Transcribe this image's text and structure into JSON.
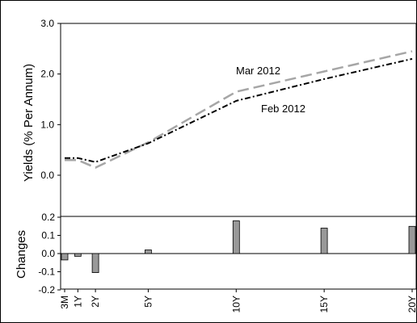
{
  "chart_data": [
    {
      "type": "line",
      "xlabel": "",
      "ylabel": "Yields (% Per Annum)",
      "ylim": [
        -0.3,
        3.0
      ],
      "yticks": [
        "0.0",
        "1.0",
        "2.0",
        "3.0"
      ],
      "ytick_values": [
        0,
        1,
        2,
        3
      ],
      "x": [
        0.25,
        1,
        2,
        5,
        10,
        15,
        20
      ],
      "series": [
        {
          "name": "Mar 2012",
          "values": [
            0.3,
            0.3,
            0.15,
            0.65,
            1.65,
            2.05,
            2.45
          ],
          "color": "#a6a6a6",
          "style": "dashed"
        },
        {
          "name": "Feb 2012",
          "values": [
            0.34,
            0.34,
            0.26,
            0.63,
            1.47,
            1.9,
            2.3
          ],
          "color": "#000000",
          "style": "dash-dot"
        }
      ]
    },
    {
      "type": "bar",
      "xlabel": "",
      "ylabel": "Changes",
      "ylim": [
        -0.2,
        0.2
      ],
      "yticks": [
        "-0.2",
        "-0.1",
        "0.0",
        "0.1",
        "0.2"
      ],
      "ytick_values": [
        -0.2,
        -0.1,
        0,
        0.1,
        0.2
      ],
      "categories": [
        "3M",
        "1Y",
        "2Y",
        "5Y",
        "10Y",
        "15Y",
        "20Y"
      ],
      "x": [
        0.25,
        1,
        2,
        5,
        10,
        15,
        20
      ],
      "values": [
        -0.035,
        -0.015,
        -0.105,
        0.02,
        0.18,
        0.14,
        0.15
      ],
      "bar_color": "#999999"
    }
  ]
}
